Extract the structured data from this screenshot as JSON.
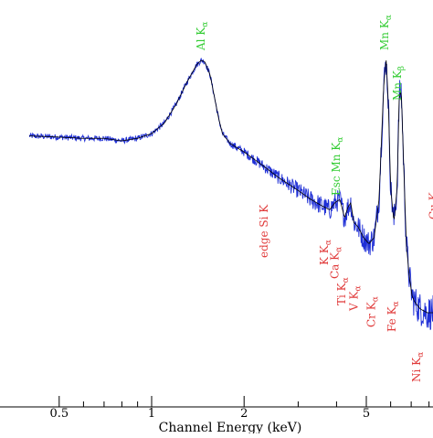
{
  "chart_data": {
    "type": "line",
    "title": "",
    "xlabel": "Channel Energy (keV)",
    "ylabel": "",
    "xscale": "log",
    "yscale": "log",
    "xlim": [
      0.4,
      8.3
    ],
    "x_ticks": [
      {
        "value": 0.5,
        "label": "0.5"
      },
      {
        "value": 1,
        "label": "1"
      },
      {
        "value": 2,
        "label": "2"
      },
      {
        "value": 5,
        "label": "5"
      }
    ],
    "x_minor_ticks": [
      0.6,
      0.7,
      0.8,
      0.9,
      3,
      4,
      6,
      7,
      8
    ],
    "y_ticks_labeled": false,
    "grid": false,
    "legend": "none",
    "colors": {
      "data": "#1f2fd6",
      "model": "#000000",
      "element_lines": "#e03a3a",
      "escape_and_source_lines": "#33cc33"
    },
    "series": [
      {
        "role": "data",
        "x": [
          0.4,
          0.5,
          0.6,
          0.7,
          0.8,
          0.9,
          1.0,
          1.1,
          1.2,
          1.3,
          1.4,
          1.45,
          1.49,
          1.55,
          1.6,
          1.65,
          1.7,
          1.8,
          2.0,
          2.3,
          2.6,
          3.0,
          3.3,
          3.6,
          3.8,
          3.95,
          4.1,
          4.25,
          4.35,
          4.45,
          4.55,
          4.7,
          4.9,
          5.1,
          5.3,
          5.5,
          5.6,
          5.7,
          5.8,
          5.9,
          6.0,
          6.15,
          6.3,
          6.4,
          6.5,
          6.6,
          6.75,
          6.9,
          7.05,
          7.2,
          7.5,
          7.9,
          8.3
        ],
        "y": [
          0.27,
          0.265,
          0.26,
          0.26,
          0.25,
          0.26,
          0.28,
          0.33,
          0.44,
          0.62,
          0.82,
          0.88,
          0.86,
          0.7,
          0.5,
          0.36,
          0.28,
          0.24,
          0.21,
          0.17,
          0.14,
          0.115,
          0.1,
          0.09,
          0.085,
          0.095,
          0.1,
          0.075,
          0.088,
          0.095,
          0.07,
          0.065,
          0.055,
          0.05,
          0.055,
          0.1,
          0.25,
          0.6,
          0.9,
          0.45,
          0.12,
          0.07,
          0.12,
          0.5,
          0.55,
          0.2,
          0.05,
          0.03,
          0.022,
          0.02,
          0.018,
          0.017,
          0.017
        ]
      },
      {
        "role": "model",
        "x": [
          0.4,
          0.5,
          0.6,
          0.7,
          0.8,
          0.9,
          1.0,
          1.1,
          1.2,
          1.3,
          1.4,
          1.45,
          1.49,
          1.55,
          1.6,
          1.65,
          1.7,
          1.8,
          2.0,
          2.3,
          2.6,
          3.0,
          3.3,
          3.6,
          3.8,
          3.95,
          4.1,
          4.25,
          4.35,
          4.45,
          4.55,
          4.7,
          4.9,
          5.1,
          5.3,
          5.5,
          5.6,
          5.7,
          5.8,
          5.9,
          6.0,
          6.15,
          6.3,
          6.4,
          6.5,
          6.6,
          6.75,
          6.9,
          7.05,
          7.2,
          7.5,
          7.9,
          8.3
        ],
        "y": [
          0.27,
          0.265,
          0.26,
          0.26,
          0.25,
          0.26,
          0.28,
          0.33,
          0.44,
          0.62,
          0.82,
          0.88,
          0.86,
          0.7,
          0.5,
          0.36,
          0.28,
          0.24,
          0.21,
          0.17,
          0.14,
          0.115,
          0.1,
          0.09,
          0.085,
          0.095,
          0.1,
          0.075,
          0.088,
          0.095,
          0.07,
          0.065,
          0.055,
          0.05,
          0.055,
          0.1,
          0.25,
          0.6,
          0.9,
          0.45,
          0.12,
          0.07,
          0.12,
          0.5,
          0.55,
          0.2,
          0.05,
          0.03,
          0.022,
          0.02,
          0.018,
          0.017,
          0.017
        ]
      }
    ],
    "annotations": [
      {
        "text": "Al K",
        "sub": "α",
        "energy": 1.49,
        "color": "green"
      },
      {
        "text": "edge Si K",
        "sub": "",
        "energy": 1.84,
        "color": "red"
      },
      {
        "text": "Esc Mn K",
        "sub": "α",
        "energy": 4.16,
        "color": "green"
      },
      {
        "text": "K K",
        "sub": "α",
        "energy": 3.31,
        "color": "red"
      },
      {
        "text": "Ca K",
        "sub": "α",
        "energy": 3.69,
        "color": "red"
      },
      {
        "text": "Ti K",
        "sub": "α",
        "energy": 4.51,
        "color": "red"
      },
      {
        "text": "V K",
        "sub": "α",
        "energy": 4.95,
        "color": "red"
      },
      {
        "text": "Cr K",
        "sub": "α",
        "energy": 5.41,
        "color": "red"
      },
      {
        "text": "Mn K",
        "sub": "α",
        "energy": 5.9,
        "color": "green"
      },
      {
        "text": "Mn K",
        "sub": "β",
        "energy": 6.49,
        "color": "green"
      },
      {
        "text": "Fe K",
        "sub": "α",
        "energy": 6.4,
        "color": "red"
      },
      {
        "text": "Ni K",
        "sub": "α",
        "energy": 7.48,
        "color": "red"
      },
      {
        "text": "Cu K",
        "sub": "",
        "energy": 8.05,
        "color": "red"
      }
    ]
  }
}
